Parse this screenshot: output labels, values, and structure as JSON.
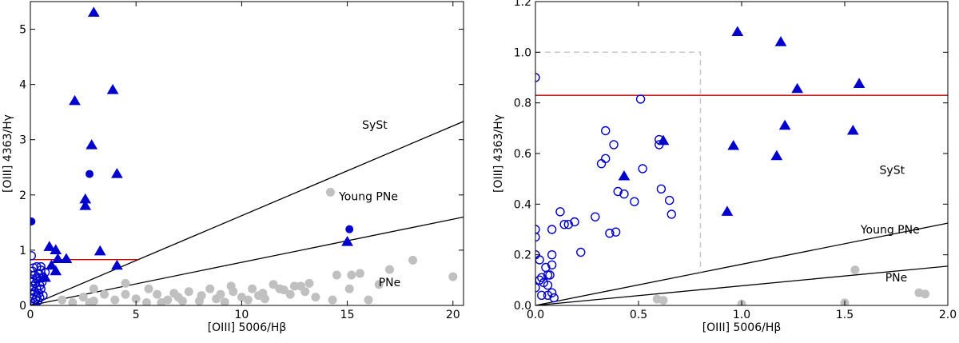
{
  "chart_data": [
    {
      "type": "scatter",
      "xlabel": "[OIII] 5006/Hβ",
      "ylabel": "[OIII] 4363/Hγ",
      "xlim": [
        0,
        20.5
      ],
      "ylim": [
        0,
        5.5
      ],
      "xticks": [
        0,
        5,
        10,
        15,
        20
      ],
      "yticks": [
        0,
        1,
        2,
        3,
        4,
        5
      ],
      "xtick_labels": [
        "0",
        "5",
        "10",
        "15",
        "20"
      ],
      "ytick_labels": [
        "0",
        "1",
        "2",
        "3",
        "4",
        "5"
      ],
      "region_labels": [
        {
          "text": "SySt",
          "x": 16.3,
          "y": 3.2
        },
        {
          "text": "Young PNe",
          "x": 16.0,
          "y": 1.9
        },
        {
          "text": "PNe",
          "x": 17.0,
          "y": 0.35
        }
      ],
      "lines": [
        {
          "name": "boundary-syst",
          "x": [
            0,
            20.5
          ],
          "y": [
            0,
            3.33
          ],
          "color": "#000000"
        },
        {
          "name": "boundary-pne",
          "x": [
            0,
            20.5
          ],
          "y": [
            0,
            1.6
          ],
          "color": "#000000"
        },
        {
          "name": "red-line",
          "x": [
            0,
            5.1
          ],
          "y": [
            0.83,
            0.83
          ],
          "color": "#cc0000"
        }
      ],
      "series": [
        {
          "name": "SySt (triangles)",
          "marker": "triangle",
          "color": "#0000cc",
          "fill": true,
          "x": [
            3.0,
            2.1,
            3.9,
            2.9,
            4.1,
            2.6,
            2.6,
            3.3,
            4.1,
            0.9,
            1.2,
            1.3,
            1.0,
            1.2,
            1.7,
            0.7,
            15.0
          ],
          "y": [
            5.3,
            3.7,
            3.9,
            2.9,
            2.38,
            1.92,
            1.8,
            0.98,
            0.72,
            1.06,
            1.0,
            0.84,
            0.72,
            0.62,
            0.84,
            0.5,
            1.15
          ]
        },
        {
          "name": "filled circles",
          "marker": "circle",
          "color": "#0000cc",
          "fill": true,
          "x": [
            0.05,
            2.8,
            15.1
          ],
          "y": [
            1.52,
            2.38,
            1.38
          ]
        },
        {
          "name": "Young PNe (open circles)",
          "marker": "circle",
          "color": "#0000cc",
          "fill": false,
          "x": [
            0.1,
            0.3,
            0.5,
            0.7,
            0.2,
            0.4,
            0.6,
            0.15,
            0.35,
            0.55,
            0.25,
            0.45,
            0.1,
            0.3,
            0.05,
            0.2,
            0.5,
            0.15,
            0.4,
            0.3,
            0.6,
            0.1,
            0.25,
            0.45,
            0.2,
            0.35,
            0.05,
            0.15,
            0.5,
            0.1,
            0.3
          ],
          "y": [
            0.62,
            0.7,
            0.64,
            0.6,
            0.55,
            0.58,
            0.5,
            0.45,
            0.48,
            0.42,
            0.4,
            0.36,
            0.35,
            0.3,
            0.28,
            0.25,
            0.3,
            0.2,
            0.22,
            0.15,
            0.18,
            0.12,
            0.1,
            0.14,
            0.05,
            0.08,
            0.9,
            0.68,
            0.7,
            0.42,
            0.5
          ]
        },
        {
          "name": "PNe (gray)",
          "marker": "circle",
          "color": "#c0c0c0",
          "fill": true,
          "x": [
            14.2,
            1.5,
            2.0,
            2.5,
            3.0,
            3.5,
            4.0,
            4.5,
            5.0,
            5.5,
            6.0,
            6.5,
            7.0,
            7.5,
            8.0,
            8.5,
            9.0,
            9.5,
            10.0,
            10.5,
            11.0,
            11.5,
            12.0,
            12.5,
            13.0,
            13.5,
            14.5,
            15.2,
            15.6,
            16.0,
            16.5,
            17.0,
            18.1,
            20.0,
            4.5,
            6.2,
            8.8,
            9.6,
            10.8,
            11.8,
            12.8,
            13.2,
            3.0,
            7.2,
            11.1,
            12.3,
            15.1,
            14.3,
            2.8,
            8.1,
            9.2,
            10.3,
            5.6,
            6.8
          ],
          "y": [
            2.05,
            0.1,
            0.05,
            0.15,
            0.08,
            0.2,
            0.1,
            0.4,
            0.12,
            0.05,
            0.2,
            0.1,
            0.15,
            0.25,
            0.08,
            0.3,
            0.2,
            0.35,
            0.15,
            0.3,
            0.22,
            0.38,
            0.28,
            0.35,
            0.25,
            0.15,
            0.55,
            0.55,
            0.58,
            0.1,
            0.38,
            0.65,
            0.82,
            0.52,
            0.2,
            0.05,
            0.12,
            0.25,
            0.18,
            0.3,
            0.35,
            0.4,
            0.3,
            0.08,
            0.12,
            0.2,
            0.3,
            0.1,
            0.05,
            0.18,
            0.06,
            0.1,
            0.3,
            0.22
          ]
        }
      ]
    },
    {
      "type": "scatter",
      "xlabel": "[OIII] 5006/Hβ",
      "ylabel": "[OIII] 4363/Hγ",
      "xlim": [
        0,
        2.0
      ],
      "ylim": [
        0,
        1.2
      ],
      "xticks": [
        0,
        0.5,
        1.0,
        1.5,
        2.0
      ],
      "yticks": [
        0,
        0.2,
        0.4,
        0.6,
        0.8,
        1.0,
        1.2
      ],
      "xtick_labels": [
        "0.0",
        "0.5",
        "1.0",
        "1.5",
        "2.0"
      ],
      "ytick_labels": [
        "0.0",
        "0.2",
        "0.4",
        "0.6",
        "0.8",
        "1.0",
        "1.2"
      ],
      "region_labels": [
        {
          "text": "SySt",
          "x": 1.73,
          "y": 0.52
        },
        {
          "text": "Young PNe",
          "x": 1.72,
          "y": 0.285
        },
        {
          "text": "PNe",
          "x": 1.75,
          "y": 0.095
        }
      ],
      "lines": [
        {
          "name": "boundary-syst",
          "x": [
            0,
            2.0
          ],
          "y": [
            0,
            0.325
          ],
          "color": "#000000"
        },
        {
          "name": "boundary-pne",
          "x": [
            0,
            2.0
          ],
          "y": [
            0,
            0.155
          ],
          "color": "#000000"
        },
        {
          "name": "red-line",
          "x": [
            0,
            2.0
          ],
          "y": [
            0.83,
            0.83
          ],
          "color": "#cc0000"
        },
        {
          "name": "dashed-box",
          "x": [
            0,
            0.8,
            0.8
          ],
          "y": [
            1.0,
            1.0,
            0.13
          ],
          "color": "#c8c8c8",
          "dashed": true
        }
      ],
      "series": [
        {
          "name": "SySt (triangles)",
          "marker": "triangle",
          "color": "#0000cc",
          "fill": true,
          "x": [
            0.98,
            1.19,
            1.57,
            1.27,
            1.21,
            0.96,
            1.54,
            1.17,
            0.93,
            0.62,
            0.43
          ],
          "y": [
            1.08,
            1.04,
            0.875,
            0.855,
            0.71,
            0.63,
            0.69,
            0.59,
            0.37,
            0.65,
            0.51
          ]
        },
        {
          "name": "Young PNe (open circles)",
          "marker": "circle",
          "color": "#0000cc",
          "fill": false,
          "x": [
            0.0,
            0.51,
            0.34,
            0.38,
            0.32,
            0.6,
            0.6,
            0.34,
            0.52,
            0.43,
            0.4,
            0.61,
            0.65,
            0.48,
            0.29,
            0.36,
            0.39,
            0.66,
            0.12,
            0.14,
            0.16,
            0.19,
            0.08,
            0.22,
            0.0,
            0.0,
            0.0,
            0.02,
            0.08,
            0.08,
            0.05,
            0.06,
            0.03,
            0.07,
            0.04,
            0.06,
            0.02,
            0.08,
            0.0,
            0.03,
            0.06,
            0.09
          ],
          "y": [
            0.9,
            0.815,
            0.69,
            0.635,
            0.56,
            0.655,
            0.635,
            0.58,
            0.54,
            0.44,
            0.45,
            0.46,
            0.415,
            0.41,
            0.35,
            0.285,
            0.29,
            0.36,
            0.37,
            0.32,
            0.32,
            0.33,
            0.3,
            0.21,
            0.3,
            0.27,
            0.2,
            0.18,
            0.2,
            0.16,
            0.15,
            0.12,
            0.11,
            0.12,
            0.09,
            0.08,
            0.1,
            0.05,
            0.07,
            0.04,
            0.04,
            0.03
          ]
        },
        {
          "name": "PNe (gray)",
          "marker": "circle",
          "color": "#c0c0c0",
          "fill": true,
          "x": [
            0.59,
            0.62,
            1.0,
            1.55,
            1.5,
            1.86,
            1.89
          ],
          "y": [
            0.025,
            0.02,
            0.005,
            0.14,
            0.01,
            0.05,
            0.045
          ]
        }
      ]
    }
  ]
}
